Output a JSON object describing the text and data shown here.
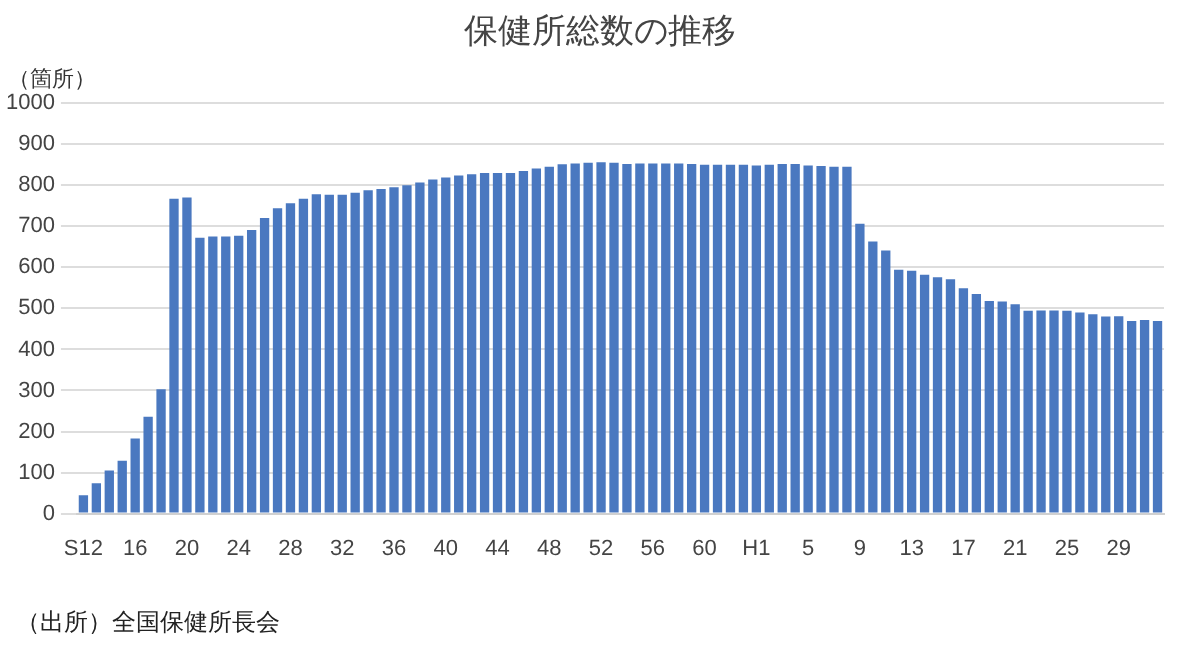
{
  "chart_data": {
    "type": "bar",
    "title": "保健所総数の推移",
    "ylabel": "（箇所）",
    "annotations": [
      "（出所）全国保健所長会"
    ],
    "categories": [
      "S12",
      null,
      null,
      null,
      "16",
      null,
      null,
      null,
      "20",
      null,
      null,
      null,
      "24",
      null,
      null,
      null,
      "28",
      null,
      null,
      null,
      "32",
      null,
      null,
      null,
      "36",
      null,
      null,
      null,
      "40",
      null,
      null,
      null,
      "44",
      null,
      null,
      null,
      "48",
      null,
      null,
      null,
      "52",
      null,
      null,
      null,
      "56",
      null,
      null,
      null,
      "60",
      null,
      null,
      null,
      "H1",
      null,
      null,
      null,
      "5",
      null,
      null,
      null,
      "9",
      null,
      null,
      null,
      "13",
      null,
      null,
      null,
      "17",
      null,
      null,
      null,
      "21",
      null,
      null,
      null,
      "25",
      null,
      null,
      null,
      "29",
      null,
      null,
      null
    ],
    "values": [
      45,
      74,
      105,
      129,
      183,
      236,
      303,
      767,
      770,
      672,
      675,
      675,
      677,
      691,
      720,
      744,
      756,
      767,
      778,
      777,
      777,
      782,
      788,
      791,
      795,
      800,
      807,
      814,
      819,
      824,
      827,
      830,
      830,
      830,
      835,
      841,
      845,
      851,
      853,
      855,
      856,
      855,
      852,
      853,
      853,
      853,
      853,
      852,
      850,
      850,
      850,
      850,
      848,
      850,
      852,
      852,
      848,
      847,
      845,
      845,
      706,
      663,
      641,
      594,
      592,
      582,
      576,
      571,
      549,
      535,
      518,
      517,
      510,
      494,
      495,
      495,
      494,
      490,
      486,
      480,
      481,
      469,
      472,
      469
    ],
    "color": "#4a78c0",
    "ylim": [
      0,
      1000
    ],
    "yticks": [
      0,
      100,
      200,
      300,
      400,
      500,
      600,
      700,
      800,
      900,
      1000
    ],
    "grid": "y",
    "legend": false
  }
}
